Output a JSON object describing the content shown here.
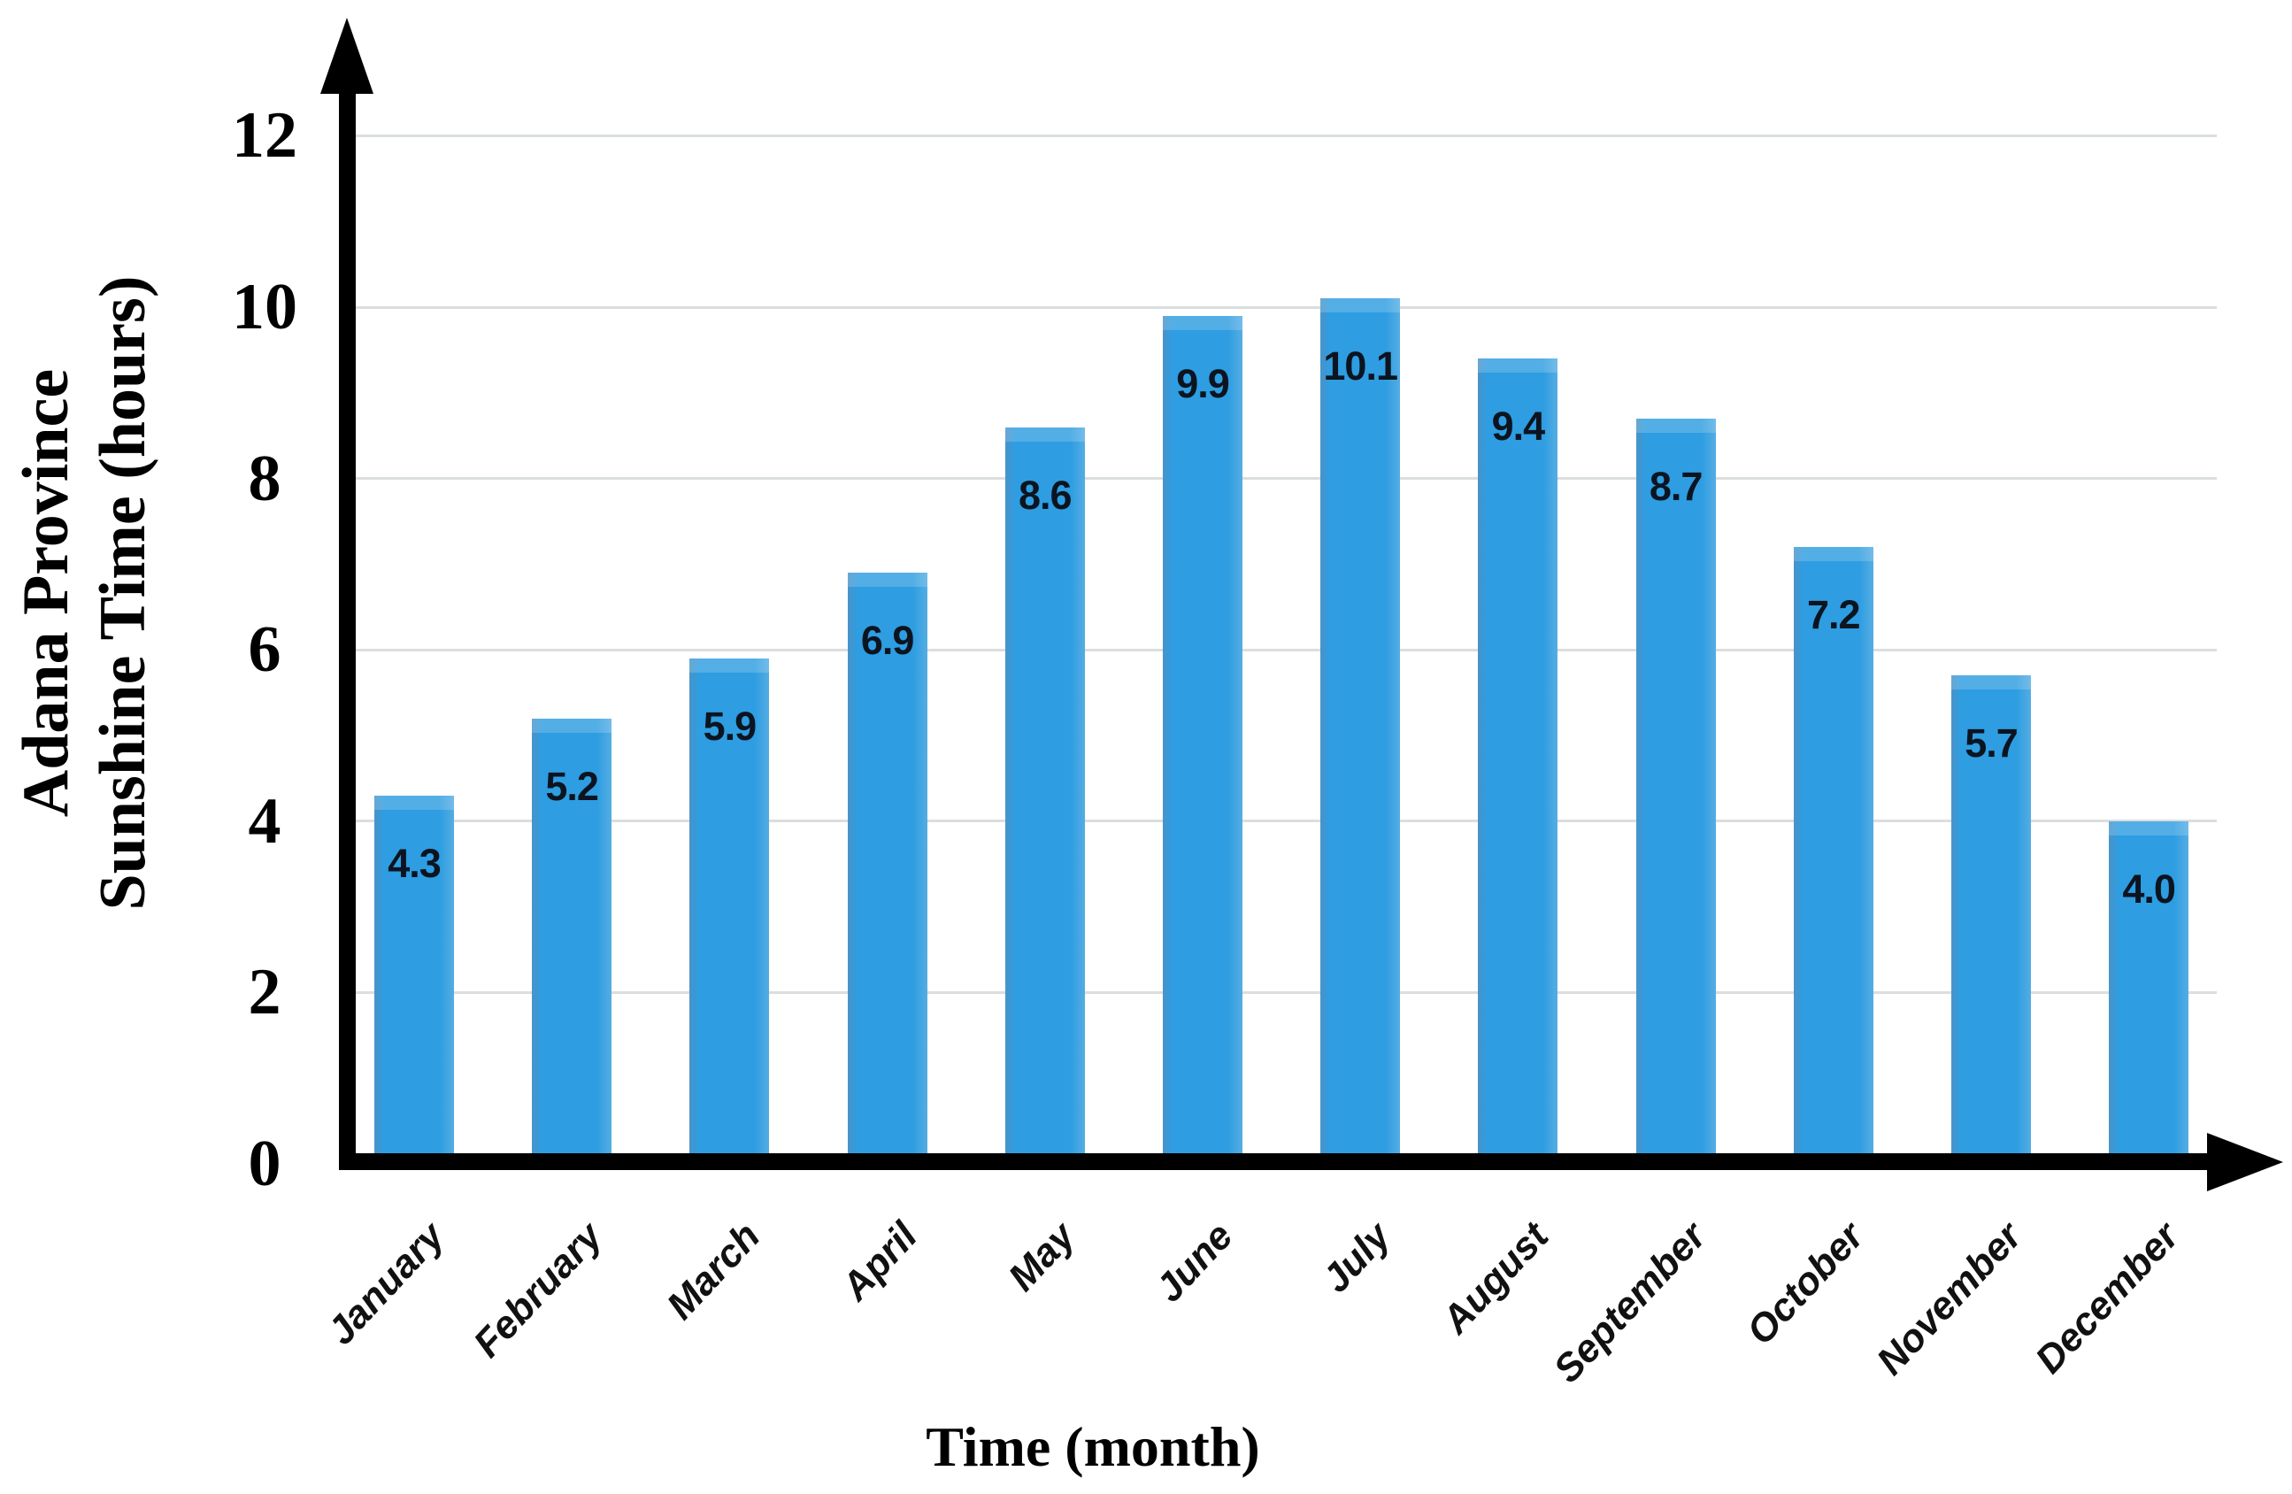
{
  "chart_data": {
    "type": "bar",
    "title": "",
    "categories": [
      "January",
      "February",
      "March",
      "April",
      "May",
      "June",
      "July",
      "August",
      "September",
      "October",
      "November",
      "December"
    ],
    "values": [
      4.3,
      5.2,
      5.9,
      6.9,
      8.6,
      9.9,
      10.1,
      9.4,
      8.7,
      7.2,
      5.7,
      4.0
    ],
    "value_labels": [
      "4.3",
      "5.2",
      "5.9",
      "6.9",
      "8.6",
      "9.9",
      "10.1",
      "9.4",
      "8.7",
      "7.2",
      "5.7",
      "4.0"
    ],
    "xlabel": "Time (month)",
    "ylabel_lines": [
      "Adana Province",
      "Sunshine Time (hours)"
    ],
    "ylim": [
      0,
      12
    ],
    "yticks": [
      0,
      2,
      4,
      6,
      8,
      10,
      12
    ],
    "grid": true,
    "legend_position": "none",
    "bar_color": "#2E9DE1",
    "axis_color": "#000000",
    "gridline_color": "#dadede",
    "value_label_color": "#0c1420"
  }
}
